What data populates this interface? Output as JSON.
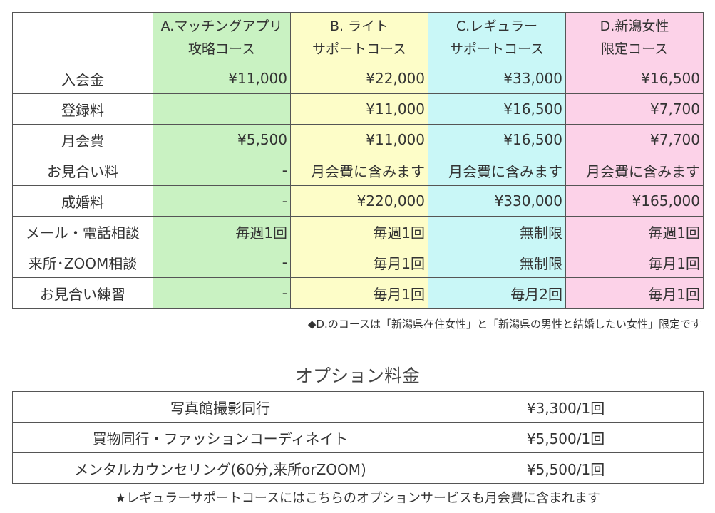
{
  "courses": [
    {
      "line1": "A.マッチングアプリ",
      "line2": "攻略コース",
      "color": "#c9f2c2"
    },
    {
      "line1": "B. ライト",
      "line2": "サポートコース",
      "color": "#fdfdc8"
    },
    {
      "line1": "C.レギュラー",
      "line2": "サポートコース",
      "color": "#c9f7f7"
    },
    {
      "line1": "D.新潟女性",
      "line2": "限定コース",
      "color": "#fcd2e8"
    }
  ],
  "rows": [
    {
      "label": "入会金",
      "a": "¥11,000",
      "b": "¥22,000",
      "c": "¥33,000",
      "d": "¥16,500"
    },
    {
      "label": "登録料",
      "a": "",
      "b": "¥11,000",
      "c": "¥16,500",
      "d": "¥7,700"
    },
    {
      "label": "月会費",
      "a": "¥5,500",
      "b": "¥11,000",
      "c": "¥16,500",
      "d": "¥7,700"
    },
    {
      "label": "お見合い料",
      "a": "-",
      "b": "月会費に含みます",
      "c": "月会費に含みます",
      "d": "月会費に含みます"
    },
    {
      "label": "成婚料",
      "a": "-",
      "b": "¥220,000",
      "c": "¥330,000",
      "d": "¥165,000"
    },
    {
      "label": "メール・電話相談",
      "a": "毎週1回",
      "b": "毎週1回",
      "c": "無制限",
      "d": "毎週1回"
    },
    {
      "label": "来所･ZOOM相談",
      "a": "-",
      "b": "毎月1回",
      "c": "無制限",
      "d": "毎月1回"
    },
    {
      "label": "お見合い練習",
      "a": "-",
      "b": "毎月1回",
      "c": "毎月2回",
      "d": "毎月1回"
    }
  ],
  "note_d": "◆D.のコースは「新潟県在住女性」と「新潟県の男性と結婚したい女性」限定です",
  "options": {
    "title": "オプション料金",
    "items": [
      {
        "name": "写真館撮影同行",
        "price": "¥3,300/1回"
      },
      {
        "name": "買物同行・ファッションコーディネイト",
        "price": "¥5,500/1回"
      },
      {
        "name": "メンタルカウンセリング(60分,来所orZOOM)",
        "price": "¥5,500/1回"
      }
    ],
    "note": "★レギュラーサポートコースにはこちらのオプションサービスも月会費に含まれます"
  }
}
